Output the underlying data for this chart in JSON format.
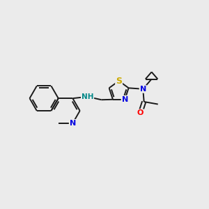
{
  "background_color": "#ebebeb",
  "bond_color": "#1a1a1a",
  "atom_colors": {
    "N": "#0000e0",
    "O": "#ff0000",
    "S": "#ccaa00",
    "NH": "#008888",
    "H": "#008888",
    "C": "#1a1a1a"
  },
  "bond_lw": 1.4,
  "fs": 8.0
}
